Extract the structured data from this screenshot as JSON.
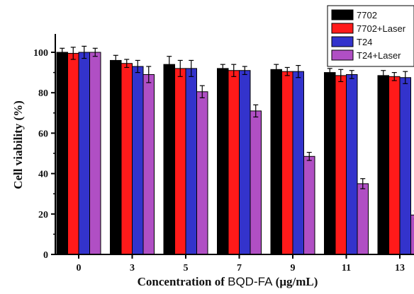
{
  "chart_data": {
    "type": "bar",
    "xlabel_parts": {
      "pre": "Concentration of ",
      "mid": "BQD-FA",
      "post": " (μg/mL)"
    },
    "ylabel": "Cell viability (%)",
    "ylim": [
      0,
      100
    ],
    "yticks": [
      0,
      20,
      40,
      60,
      80,
      100
    ],
    "categories": [
      "0",
      "3",
      "5",
      "7",
      "9",
      "11",
      "13"
    ],
    "series": [
      {
        "name": "7702",
        "color": "#000000",
        "values": [
          100,
          96,
          94,
          92,
          91.5,
          90,
          88.5
        ],
        "errors": [
          2,
          2.5,
          4,
          2,
          2.5,
          2,
          2.5
        ]
      },
      {
        "name": "7702+Laser",
        "color": "#ff1a1a",
        "values": [
          99.5,
          94.5,
          92,
          91,
          90.5,
          88.5,
          88
        ],
        "errors": [
          3,
          2,
          4,
          3,
          2,
          3,
          2
        ]
      },
      {
        "name": "T24",
        "color": "#3333cc",
        "values": [
          100,
          93,
          92,
          91,
          90.5,
          89,
          87.5
        ],
        "errors": [
          3,
          3,
          4,
          2,
          3,
          2,
          3
        ]
      },
      {
        "name": "T24+Laser",
        "color": "#b04fc4",
        "values": [
          100,
          89,
          80.5,
          71,
          48.5,
          35,
          19.5
        ],
        "errors": [
          2,
          4,
          3,
          3,
          2,
          2.5,
          2
        ]
      }
    ],
    "legend_position": "top-right",
    "grid": false
  }
}
